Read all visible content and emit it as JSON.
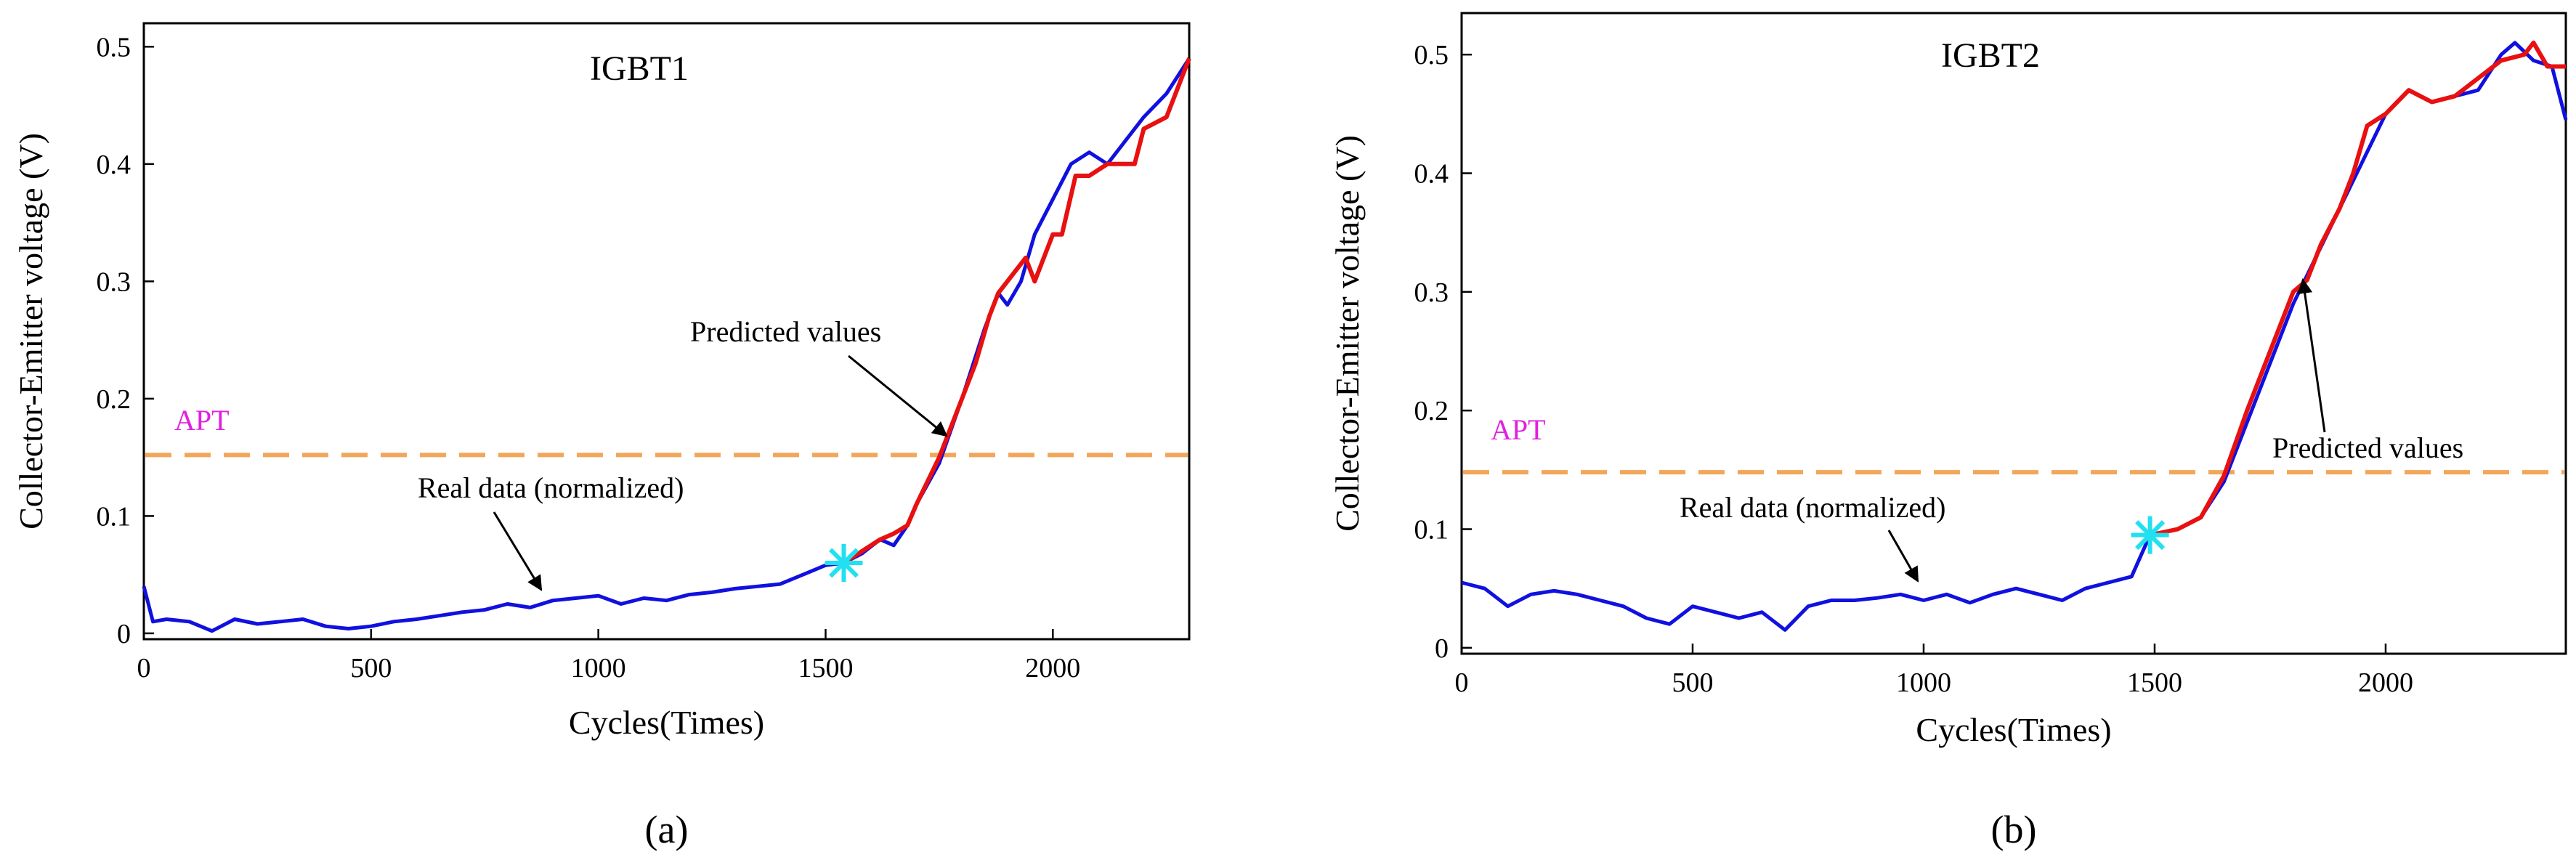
{
  "chart_data": [
    {
      "type": "line",
      "title": "IGBT1",
      "xlabel": "Cycles(Times)",
      "ylabel": "Collector-Emitter voltage (V)",
      "xlim": [
        0,
        2300
      ],
      "ylim": [
        -0.005,
        0.52
      ],
      "xticks": [
        0,
        500,
        1000,
        1500,
        2000
      ],
      "yticks": [
        0,
        0.1,
        0.2,
        0.3,
        0.4,
        0.5
      ],
      "ytick_labels": [
        "0",
        "0.1",
        "0.2",
        "0.3",
        "0.4",
        "0.5"
      ],
      "threshold": {
        "label": "APT",
        "value": 0.152,
        "color": "#f2a65a"
      },
      "start_marker": {
        "x": 1540,
        "y": 0.06,
        "color": "#22e0f0"
      },
      "annotations": [
        {
          "text": "Real data (normalized)",
          "target": [
            900,
            0.03
          ]
        },
        {
          "text": "Predicted values",
          "target": [
            1775,
            0.155
          ]
        }
      ],
      "panel_label": "(a)",
      "series": [
        {
          "name": "Real data (normalized)",
          "color": "#1010e0",
          "x": [
            0,
            20,
            50,
            100,
            150,
            200,
            250,
            300,
            350,
            400,
            450,
            500,
            550,
            600,
            650,
            700,
            750,
            800,
            850,
            900,
            950,
            1000,
            1050,
            1100,
            1150,
            1200,
            1250,
            1300,
            1350,
            1400,
            1450,
            1500,
            1540,
            1580,
            1620,
            1650,
            1680,
            1700,
            1750,
            1800,
            1850,
            1880,
            1900,
            1930,
            1960,
            2000,
            2040,
            2080,
            2120,
            2160,
            2200,
            2250,
            2300
          ],
          "y": [
            0.04,
            0.01,
            0.012,
            0.01,
            0.002,
            0.012,
            0.008,
            0.01,
            0.012,
            0.006,
            0.004,
            0.006,
            0.01,
            0.012,
            0.015,
            0.018,
            0.02,
            0.025,
            0.022,
            0.028,
            0.03,
            0.032,
            0.025,
            0.03,
            0.028,
            0.033,
            0.035,
            0.038,
            0.04,
            0.042,
            0.05,
            0.058,
            0.06,
            0.068,
            0.08,
            0.075,
            0.092,
            0.11,
            0.145,
            0.2,
            0.26,
            0.29,
            0.28,
            0.3,
            0.34,
            0.37,
            0.4,
            0.41,
            0.4,
            0.42,
            0.44,
            0.46,
            0.49
          ]
        },
        {
          "name": "Predicted values",
          "color": "#e81010",
          "x": [
            1540,
            1580,
            1620,
            1650,
            1680,
            1700,
            1750,
            1800,
            1830,
            1860,
            1880,
            1900,
            1940,
            1960,
            2000,
            2020,
            2050,
            2080,
            2120,
            2150,
            2180,
            2200,
            2250,
            2300
          ],
          "y": [
            0.06,
            0.07,
            0.08,
            0.085,
            0.092,
            0.11,
            0.15,
            0.2,
            0.23,
            0.27,
            0.29,
            0.3,
            0.32,
            0.3,
            0.34,
            0.34,
            0.39,
            0.39,
            0.4,
            0.4,
            0.4,
            0.43,
            0.44,
            0.49
          ]
        }
      ]
    },
    {
      "type": "line",
      "title": "IGBT2",
      "xlabel": "Cycles(Times)",
      "ylabel": "Collector-Emitter voltage (V)",
      "xlim": [
        0,
        2390
      ],
      "ylim": [
        -0.005,
        0.535
      ],
      "xticks": [
        0,
        500,
        1000,
        1500,
        2000
      ],
      "yticks": [
        0,
        0.1,
        0.2,
        0.3,
        0.4,
        0.5
      ],
      "ytick_labels": [
        "0",
        "0.1",
        "0.2",
        "0.3",
        "0.4",
        "0.5"
      ],
      "threshold": {
        "label": "APT",
        "value": 0.148,
        "color": "#f2a65a"
      },
      "start_marker": {
        "x": 1490,
        "y": 0.095,
        "color": "#22e0f0"
      },
      "annotations": [
        {
          "text": "Real data (normalized)",
          "target": [
            1150,
            0.045
          ]
        },
        {
          "text": "Predicted values",
          "target": [
            1830,
            0.3
          ]
        }
      ],
      "panel_label": "(b)",
      "series": [
        {
          "name": "Real data (normalized)",
          "color": "#1010e0",
          "x": [
            0,
            50,
            100,
            150,
            200,
            250,
            300,
            350,
            400,
            450,
            500,
            550,
            600,
            650,
            700,
            750,
            800,
            850,
            900,
            950,
            1000,
            1050,
            1100,
            1150,
            1200,
            1250,
            1300,
            1350,
            1400,
            1450,
            1490,
            1550,
            1600,
            1650,
            1700,
            1750,
            1800,
            1850,
            1900,
            1950,
            2000,
            2050,
            2100,
            2150,
            2200,
            2250,
            2280,
            2320,
            2360,
            2390
          ],
          "y": [
            0.055,
            0.05,
            0.035,
            0.045,
            0.048,
            0.045,
            0.04,
            0.035,
            0.025,
            0.02,
            0.035,
            0.03,
            0.025,
            0.03,
            0.015,
            0.035,
            0.04,
            0.04,
            0.042,
            0.045,
            0.04,
            0.045,
            0.038,
            0.045,
            0.05,
            0.045,
            0.04,
            0.05,
            0.055,
            0.06,
            0.095,
            0.1,
            0.11,
            0.14,
            0.19,
            0.24,
            0.29,
            0.33,
            0.37,
            0.41,
            0.45,
            0.47,
            0.46,
            0.465,
            0.47,
            0.5,
            0.51,
            0.495,
            0.49,
            0.445
          ]
        },
        {
          "name": "Predicted values",
          "color": "#e81010",
          "x": [
            1490,
            1550,
            1600,
            1650,
            1700,
            1750,
            1800,
            1830,
            1860,
            1900,
            1930,
            1960,
            2000,
            2050,
            2100,
            2150,
            2200,
            2250,
            2300,
            2320,
            2350,
            2390
          ],
          "y": [
            0.095,
            0.1,
            0.11,
            0.145,
            0.2,
            0.25,
            0.3,
            0.31,
            0.34,
            0.37,
            0.4,
            0.44,
            0.45,
            0.47,
            0.46,
            0.465,
            0.48,
            0.495,
            0.5,
            0.51,
            0.49,
            0.49
          ]
        }
      ]
    }
  ]
}
